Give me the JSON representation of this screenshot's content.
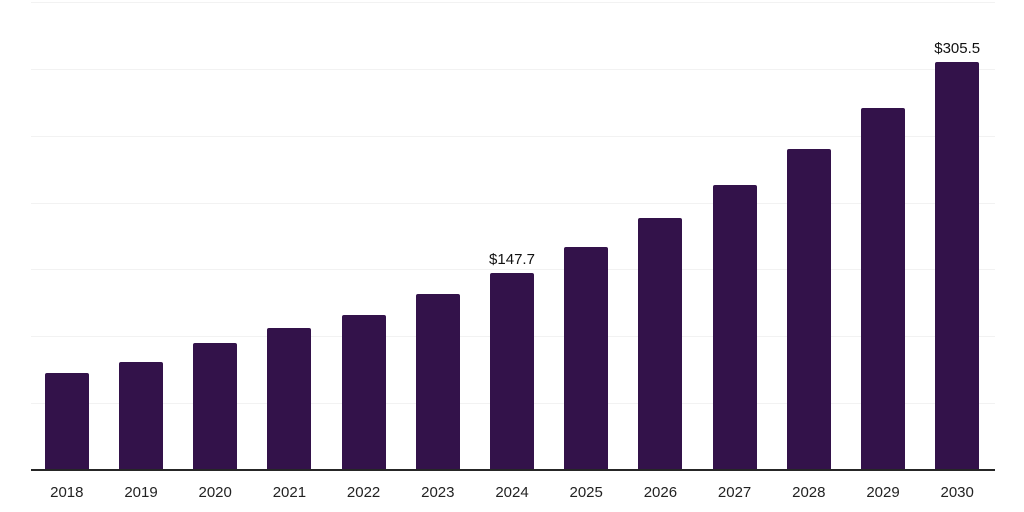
{
  "chart_data": {
    "type": "bar",
    "title": "",
    "xlabel": "",
    "ylabel": "",
    "categories": [
      "2018",
      "2019",
      "2020",
      "2021",
      "2022",
      "2023",
      "2024",
      "2025",
      "2026",
      "2027",
      "2028",
      "2029",
      "2030"
    ],
    "values": [
      72.5,
      81.0,
      95.0,
      106.0,
      116.0,
      131.5,
      147.7,
      166.5,
      188.5,
      213.0,
      240.0,
      271.0,
      305.5
    ],
    "data_labels": [
      null,
      null,
      null,
      null,
      null,
      null,
      "$147.7",
      null,
      null,
      null,
      null,
      null,
      "$305.5"
    ],
    "ylim": [
      0,
      350
    ],
    "gridline_step": 50,
    "grid": "horizontal-only",
    "legend_position": "none",
    "y_axis_labels_visible": false,
    "colors": {
      "bar": "#33124a",
      "background": "#ffffff",
      "gridline": "#f2f2f2",
      "axis_line": "#262626",
      "tick_label": "#222222",
      "data_label": "#111111"
    }
  }
}
